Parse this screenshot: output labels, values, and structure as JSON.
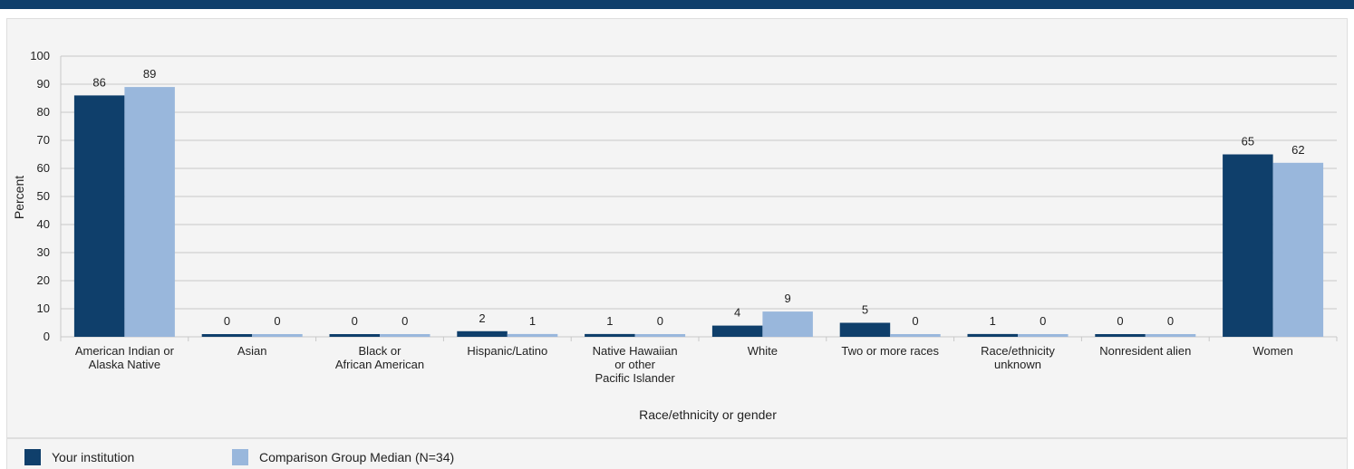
{
  "chart_data": {
    "type": "bar",
    "title": "",
    "xlabel": "Race/ethnicity or gender",
    "ylabel": "Percent",
    "ylim": [
      0,
      100
    ],
    "yticks": [
      0,
      10,
      20,
      30,
      40,
      50,
      60,
      70,
      80,
      90,
      100
    ],
    "grid": true,
    "legend_position": "bottom-left",
    "categories": [
      [
        "American Indian or",
        "Alaska Native"
      ],
      [
        "Asian"
      ],
      [
        "Black or",
        "African American"
      ],
      [
        "Hispanic/Latino"
      ],
      [
        "Native Hawaiian",
        "or other",
        "Pacific Islander"
      ],
      [
        "White"
      ],
      [
        "Two or more races"
      ],
      [
        "Race/ethnicity",
        "unknown"
      ],
      [
        "Nonresident alien"
      ],
      [
        "Women"
      ]
    ],
    "series": [
      {
        "name": "Your institution",
        "color": "#0f3f6b",
        "values": [
          86,
          0,
          0,
          2,
          1,
          4,
          5,
          1,
          0,
          65
        ]
      },
      {
        "name": "Comparison Group Median (N=34)",
        "color": "#99b7dc",
        "values": [
          89,
          0,
          0,
          1,
          0,
          9,
          0,
          0,
          0,
          62
        ]
      }
    ]
  }
}
